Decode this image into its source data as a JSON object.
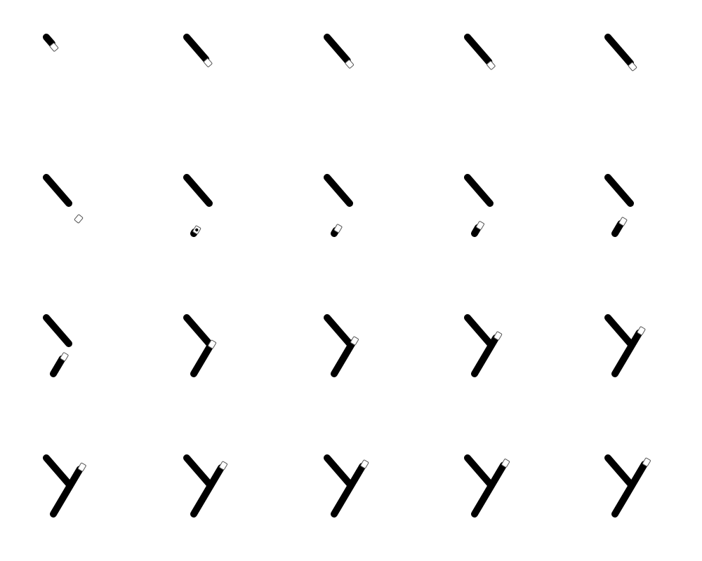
{
  "figure": {
    "description_visible_text": "",
    "grid": {
      "rows": 4,
      "cols": 5
    },
    "glyph": "Y",
    "colors": {
      "background": "#ffffff",
      "stroke": "#000000",
      "pen_outline": "#555555",
      "pen_fill": "#ffffff"
    },
    "frames": [
      {
        "index": 1,
        "stage": "stroke1",
        "progress": 0.25,
        "pen": "eraser-tip"
      },
      {
        "index": 2,
        "stage": "stroke1",
        "progress": 0.85,
        "pen": "eraser-tip"
      },
      {
        "index": 3,
        "stage": "stroke1",
        "progress": 0.9,
        "pen": "eraser-tip"
      },
      {
        "index": 4,
        "stage": "stroke1",
        "progress": 0.95,
        "pen": "eraser-tip"
      },
      {
        "index": 5,
        "stage": "stroke1",
        "progress": 1.0,
        "pen": "eraser-tip"
      },
      {
        "index": 6,
        "stage": "between",
        "progress": 0.0,
        "pen": "eraser-tip"
      },
      {
        "index": 7,
        "stage": "stroke2",
        "progress": 0.03,
        "pen": "dot"
      },
      {
        "index": 8,
        "stage": "stroke2",
        "progress": 0.06,
        "pen": "eraser-tip"
      },
      {
        "index": 9,
        "stage": "stroke2",
        "progress": 0.12,
        "pen": "eraser-tip"
      },
      {
        "index": 10,
        "stage": "stroke2",
        "progress": 0.2,
        "pen": "eraser-tip"
      },
      {
        "index": 11,
        "stage": "stroke2",
        "progress": 0.3,
        "pen": "eraser-tip"
      },
      {
        "index": 12,
        "stage": "stroke2",
        "progress": 0.55,
        "pen": "eraser-tip"
      },
      {
        "index": 13,
        "stage": "stroke2",
        "progress": 0.62,
        "pen": "eraser-tip"
      },
      {
        "index": 14,
        "stage": "stroke2",
        "progress": 0.72,
        "pen": "eraser-tip"
      },
      {
        "index": 15,
        "stage": "stroke2",
        "progress": 0.82,
        "pen": "eraser-tip"
      },
      {
        "index": 16,
        "stage": "stroke2",
        "progress": 0.9,
        "pen": "eraser-tip"
      },
      {
        "index": 17,
        "stage": "stroke2",
        "progress": 0.93,
        "pen": "eraser-tip"
      },
      {
        "index": 18,
        "stage": "stroke2",
        "progress": 0.96,
        "pen": "eraser-tip"
      },
      {
        "index": 19,
        "stage": "stroke2",
        "progress": 0.98,
        "pen": "eraser-tip"
      },
      {
        "index": 20,
        "stage": "stroke2",
        "progress": 1.0,
        "pen": "eraser-tip"
      }
    ]
  }
}
